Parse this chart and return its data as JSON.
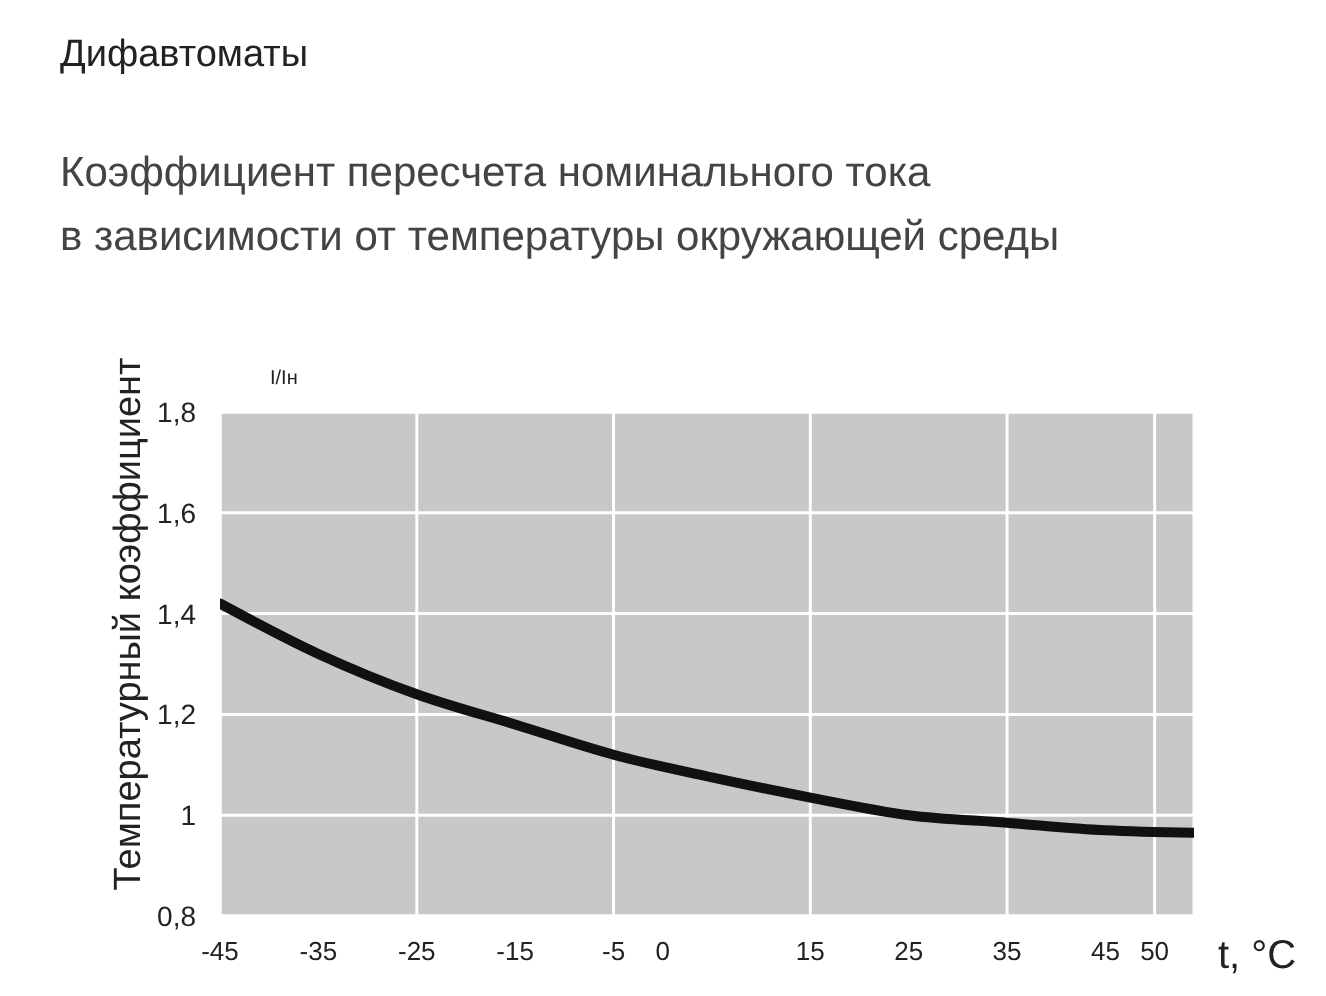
{
  "chart_data": {
    "type": "line",
    "title": "Дифавтоматы",
    "subtitle": "Коэффициент пересчета номинального тока\nв зависимости от температуры окружающей среды",
    "xlabel": "t, °C",
    "ylabel": "Температурный коэффициент",
    "annotations": [
      "I/Iн"
    ],
    "x": [
      -45,
      -35,
      -25,
      -15,
      -5,
      5,
      15,
      25,
      35,
      45,
      54
    ],
    "series": [
      {
        "color": "#111111",
        "values": [
          1.42,
          1.32,
          1.24,
          1.18,
          1.12,
          1.075,
          1.035,
          1.0,
          0.985,
          0.97,
          0.965
        ]
      }
    ],
    "xlim": [
      -45,
      54
    ],
    "xticks": [
      -45,
      -35,
      -25,
      -15,
      -5,
      0,
      15,
      25,
      35,
      45,
      50
    ],
    "ylim": [
      0.8,
      1.8
    ],
    "yticks": [
      {
        "value": 0.8,
        "label": "0,8"
      },
      1,
      {
        "value": 1.2,
        "label": "1,2"
      },
      {
        "value": 1.4,
        "label": "1,4"
      },
      {
        "value": 1.6,
        "label": "1,6"
      },
      {
        "value": 1.8,
        "label": "1,8"
      }
    ],
    "grid": true,
    "marker": "none",
    "line_style": "solid"
  }
}
